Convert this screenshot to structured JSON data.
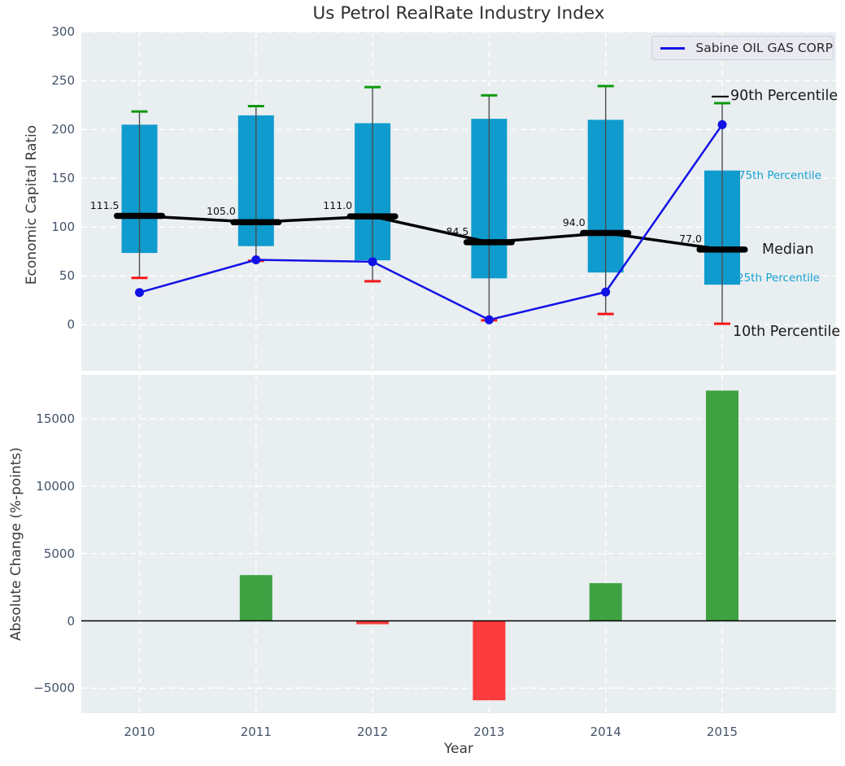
{
  "title": "Us Petrol RealRate Industry Index",
  "chart_data": [
    {
      "type": "boxplot+line",
      "title": "Us Petrol RealRate Industry Index",
      "ylabel": "Economic Capital Ratio",
      "categories": [
        "2010",
        "2011",
        "2012",
        "2013",
        "2014",
        "2015"
      ],
      "yticks": [
        300,
        250,
        200,
        150,
        100,
        50,
        0
      ],
      "ytick_labels": [
        "300",
        "250",
        "200",
        "150",
        "100",
        "50",
        "0"
      ],
      "ylim": [
        -47,
        300
      ],
      "grid": true,
      "legend": {
        "label": "Sabine OIL GAS CORP",
        "position": "upper right"
      },
      "box": {
        "p10": [
          48,
          65.5,
          44.5,
          4.5,
          11,
          1
        ],
        "p25": [
          73.5,
          80.5,
          66,
          47.5,
          53.5,
          41
        ],
        "median": [
          111.5,
          105.0,
          111.0,
          84.5,
          94.0,
          77.0
        ],
        "p75": [
          205,
          214.5,
          206.5,
          211,
          210,
          158
        ],
        "p90": [
          218.5,
          224,
          243.5,
          235,
          244.5,
          227
        ]
      },
      "median_labels": [
        "111.5",
        "105.0",
        "111.0",
        "84.5",
        "94.0",
        "77.0"
      ],
      "series": [
        {
          "name": "Sabine OIL GAS CORP",
          "values": [
            33,
            66.5,
            64.5,
            5,
            33.5,
            205
          ]
        }
      ],
      "annotations": [
        {
          "text": "90th Percentile",
          "style": "large-dark"
        },
        {
          "text": "75th Percentile",
          "style": "small-cyan"
        },
        {
          "text": "Median",
          "style": "large-dark"
        },
        {
          "text": "25th Percentile",
          "style": "small-cyan"
        },
        {
          "text": "10th Percentile",
          "style": "large-dark"
        }
      ]
    },
    {
      "type": "bar",
      "xlabel": "Year",
      "ylabel": "Absolute Change (%-points)",
      "categories": [
        "2010",
        "2011",
        "2012",
        "2013",
        "2014",
        "2015"
      ],
      "values": [
        null,
        3400,
        -250,
        -5900,
        2800,
        17100
      ],
      "yticks": [
        15000,
        10000,
        5000,
        0,
        -5000
      ],
      "ytick_labels": [
        "15000",
        "10000",
        "5000",
        "0",
        "−5000"
      ],
      "ylim": [
        -6900,
        18250
      ],
      "grid": true,
      "zero_line": true
    }
  ],
  "colors": {
    "box_fill": "#0f9bce",
    "median": "#000000",
    "series_line": "#1212e6",
    "p90_cap": "#0c9a0c",
    "p10_cap": "#f51515",
    "whisker": "#4d4d4d",
    "panel_bg": "#e9eef0",
    "grid": "#ffffff",
    "tick_text": "#44546a",
    "cyan_label": "#17a0d4",
    "positive_bar": "#3ea243",
    "negative_bar": "#fb3c3c",
    "zero_line": "#000000"
  }
}
